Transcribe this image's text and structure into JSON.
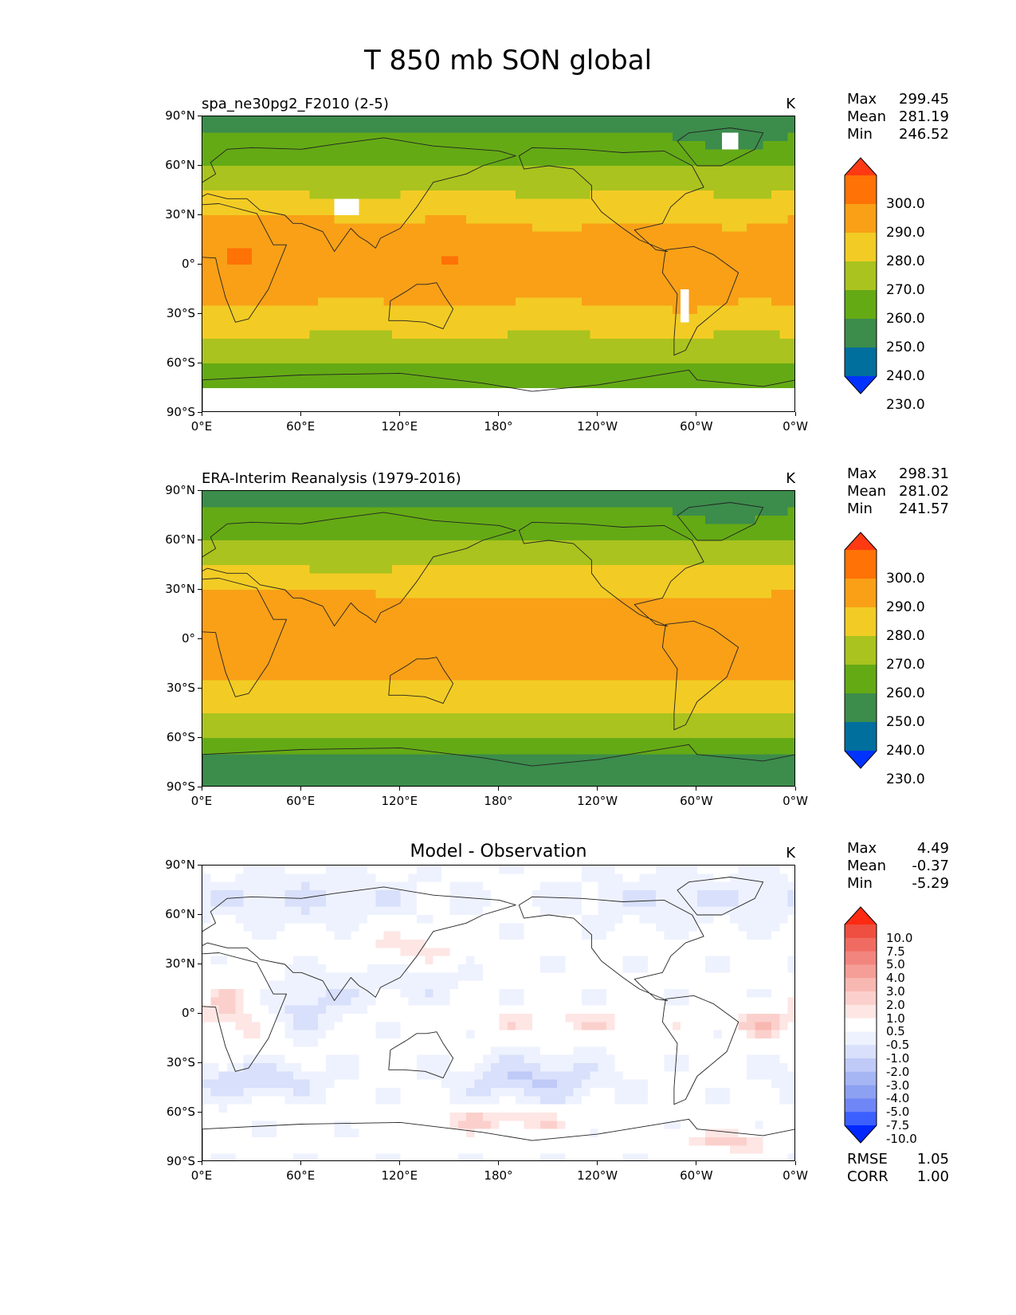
{
  "title": "T 850 mb SON global",
  "lat_ticks": [
    "90°N",
    "60°N",
    "30°N",
    "0°",
    "30°S",
    "60°S",
    "90°S"
  ],
  "lon_ticks": [
    "0°E",
    "60°E",
    "120°E",
    "180°",
    "120°W",
    "60°W",
    "0°W"
  ],
  "colors": {
    "abs_palette": [
      "#0033ff",
      "#006f9e",
      "#3c8c4c",
      "#64aa15",
      "#aac31e",
      "#f2cc24",
      "#f9a017",
      "#ff7205",
      "#ff3a12"
    ],
    "diff_palette": [
      "#0028ff",
      "#3c5fff",
      "#6f86f7",
      "#8da1f2",
      "#a6b6f4",
      "#bfcaf7",
      "#d8e0fb",
      "#eef2fe",
      "#ffffff",
      "#ffffff",
      "#fde6e4",
      "#fbd0cc",
      "#f8b8b2",
      "#f59e97",
      "#f2857d",
      "#f06b61",
      "#ee4f40",
      "#ff2a12"
    ]
  },
  "chart_data": [
    {
      "type": "heatmap",
      "subtitle": "spa_ne30pg2_F2010 (2-5)",
      "units": "K",
      "stats": {
        "max_label": "Max",
        "max": "299.45",
        "mean_label": "Mean",
        "mean": "281.19",
        "min_label": "Min",
        "min": "246.52"
      },
      "colorbar_ticks": [
        "300.0",
        "290.0",
        "280.0",
        "270.0",
        "260.0",
        "250.0",
        "240.0",
        "230.0"
      ],
      "colorbar_levels": [
        230,
        240,
        250,
        260,
        270,
        280,
        290,
        300
      ],
      "extend": "both",
      "xlim": [
        0,
        360
      ],
      "ylim": [
        -90,
        90
      ]
    },
    {
      "type": "heatmap",
      "subtitle": "ERA-Interim Reanalysis (1979-2016)",
      "units": "K",
      "stats": {
        "max_label": "Max",
        "max": "298.31",
        "mean_label": "Mean",
        "mean": "281.02",
        "min_label": "Min",
        "min": "241.57"
      },
      "colorbar_ticks": [
        "300.0",
        "290.0",
        "280.0",
        "270.0",
        "260.0",
        "250.0",
        "240.0",
        "230.0"
      ],
      "colorbar_levels": [
        230,
        240,
        250,
        260,
        270,
        280,
        290,
        300
      ],
      "extend": "both",
      "xlim": [
        0,
        360
      ],
      "ylim": [
        -90,
        90
      ]
    },
    {
      "type": "heatmap",
      "subtitle": "Model - Observation",
      "units": "K",
      "stats": {
        "max_label": "Max",
        "max": "4.49",
        "mean_label": "Mean",
        "mean": "-0.37",
        "min_label": "Min",
        "min": "-5.29"
      },
      "colorbar_ticks": [
        "10.0",
        "7.5",
        "5.0",
        "4.0",
        "3.0",
        "2.0",
        "1.0",
        "0.5",
        "-0.5",
        "-1.0",
        "-2.0",
        "-3.0",
        "-4.0",
        "-5.0",
        "-7.5",
        "-10.0"
      ],
      "colorbar_levels": [
        -10,
        -7.5,
        -5,
        -4,
        -3,
        -2,
        -1,
        -0.5,
        0.5,
        1,
        2,
        3,
        4,
        5,
        7.5,
        10
      ],
      "extend": "both",
      "rmse_label": "RMSE",
      "rmse": "1.05",
      "corr_label": "CORR",
      "corr": "1.00",
      "xlim": [
        0,
        360
      ],
      "ylim": [
        -90,
        90
      ]
    }
  ]
}
